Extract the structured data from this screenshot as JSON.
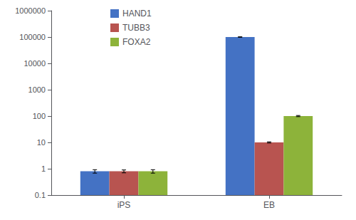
{
  "chart_data": {
    "type": "bar",
    "categories": [
      "iPS",
      "EB"
    ],
    "series": [
      {
        "name": "HAND1",
        "color": "#4472C4",
        "values": [
          0.8,
          100000
        ],
        "errors": [
          0.12,
          2000
        ]
      },
      {
        "name": "TUBB3",
        "color": "#B85450",
        "values": [
          0.8,
          10
        ],
        "errors": [
          0.1,
          0.5
        ]
      },
      {
        "name": "FOXA2",
        "color": "#8DB33A",
        "values": [
          0.8,
          100
        ],
        "errors": [
          0.12,
          5
        ]
      }
    ],
    "ylim": [
      0.1,
      1000000
    ],
    "yticks": [
      0.1,
      1,
      10,
      100,
      1000,
      10000,
      100000,
      1000000
    ],
    "log": "y",
    "grid": false,
    "legend": "upper left"
  }
}
